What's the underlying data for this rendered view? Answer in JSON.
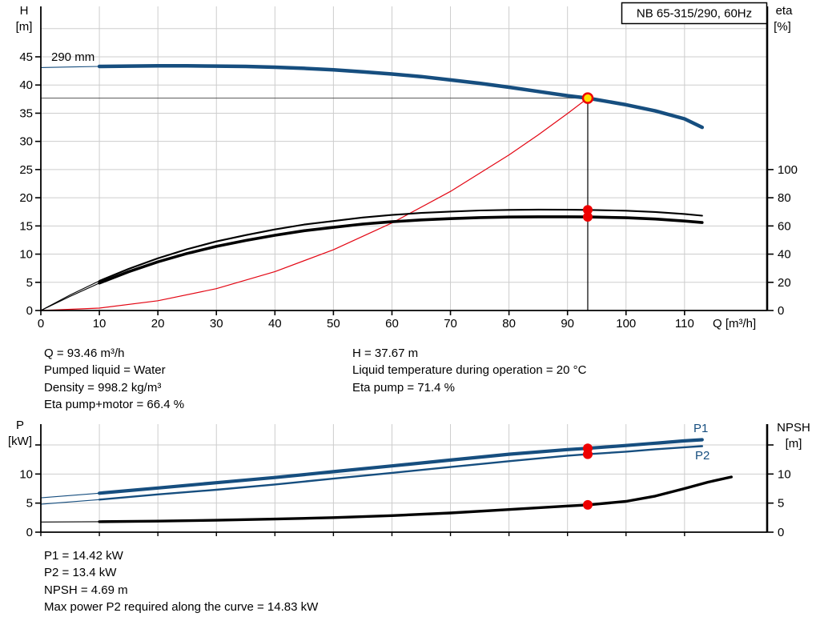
{
  "page": {
    "background": "#ffffff"
  },
  "top_chart": {
    "title_box": "NB 65-315/290, 60Hz",
    "y_left_title_1": "H",
    "y_left_title_2": "[m]",
    "y_right_title_1": "eta",
    "y_right_title_2": "[%]",
    "x_title": "Q [m³/h]",
    "curve_label": "290 mm"
  },
  "bottom_chart": {
    "y_left_title_1": "P",
    "y_left_title_2": "[kW]",
    "y_right_title_1": "NPSH",
    "y_right_title_2": "[m]",
    "p1_label": "P1",
    "p2_label": "P2"
  },
  "annotations": {
    "top_left": [
      "Q = 93.46 m³/h",
      "Pumped liquid = Water",
      "Density = 998.2 kg/m³",
      "Eta pump+motor = 66.4 %"
    ],
    "top_right": [
      "H = 37.67 m",
      "Liquid temperature during operation = 20 °C",
      "Eta pump = 71.4 %"
    ],
    "bottom": [
      "P1 = 14.42 kW",
      "P2 = 13.4 kW",
      "NPSH = 4.69 m",
      "Max power P2 required along the curve = 14.83 kW"
    ]
  },
  "colors": {
    "curve_blue": "#164e7f",
    "curve_black": "#000000",
    "curve_red": "#e30613",
    "marker_red": "#ee0000",
    "marker_yellow": "#ffdf00",
    "grid": "#cdcdcd",
    "axis": "#000000"
  },
  "chart_data": [
    {
      "id": "qh-eta-curve",
      "type": "line",
      "title": "NB 65-315/290, 60Hz",
      "xlabel": "Q [m³/h]",
      "x_range": [
        0,
        124
      ],
      "x_ticks": [
        0,
        10,
        20,
        30,
        40,
        50,
        60,
        70,
        80,
        90,
        100,
        110
      ],
      "y_left_label": "H [m]",
      "y_left_range": [
        0,
        54
      ],
      "y_left_ticks": [
        0,
        5,
        10,
        15,
        20,
        25,
        30,
        35,
        40,
        45
      ],
      "y_left_grid": [
        5,
        10,
        15,
        20,
        25,
        30,
        35,
        40,
        45,
        50
      ],
      "y_right_label": "eta [%]",
      "y_right_range": [
        0,
        216
      ],
      "y_right_ticks": [
        0,
        20,
        40,
        60,
        80,
        100
      ],
      "grid": true,
      "legend_position": "none",
      "series": [
        {
          "name": "system-curve",
          "axis": "H",
          "color": "red",
          "width": 1.2,
          "thin_until": null,
          "points": [
            [
              0,
              0
            ],
            [
              10,
              0.43
            ],
            [
              20,
              1.73
            ],
            [
              30,
              3.88
            ],
            [
              40,
              6.9
            ],
            [
              50,
              10.78
            ],
            [
              60,
              15.53
            ],
            [
              70,
              21.13
            ],
            [
              80,
              27.6
            ],
            [
              85,
              31.16
            ],
            [
              90,
              34.93
            ],
            [
              93.46,
              37.67
            ]
          ]
        },
        {
          "name": "eta-pump-plus-motor",
          "axis": "eta",
          "color": "black",
          "width": 3.6,
          "thin_until": 10,
          "points": [
            [
              0,
              0
            ],
            [
              5,
              10
            ],
            [
              10,
              19.5
            ],
            [
              15,
              27.5
            ],
            [
              20,
              34.5
            ],
            [
              25,
              40.5
            ],
            [
              30,
              45.5
            ],
            [
              35,
              49.7
            ],
            [
              40,
              53.4
            ],
            [
              45,
              56.6
            ],
            [
              50,
              59
            ],
            [
              55,
              61.3
            ],
            [
              60,
              63
            ],
            [
              65,
              64.3
            ],
            [
              70,
              65.2
            ],
            [
              75,
              65.9
            ],
            [
              80,
              66.3
            ],
            [
              85,
              66.5
            ],
            [
              90,
              66.5
            ],
            [
              93.46,
              66.4
            ],
            [
              100,
              65.8
            ],
            [
              105,
              64.9
            ],
            [
              110,
              63.5
            ],
            [
              113,
              62.4
            ]
          ]
        },
        {
          "name": "eta-pump",
          "axis": "eta",
          "color": "black",
          "width": 2.1,
          "thin_until": 10,
          "points": [
            [
              0,
              0
            ],
            [
              5,
              11
            ],
            [
              10,
              21
            ],
            [
              15,
              29.5
            ],
            [
              20,
              37
            ],
            [
              25,
              43.5
            ],
            [
              30,
              49
            ],
            [
              35,
              53.5
            ],
            [
              40,
              57.5
            ],
            [
              45,
              61
            ],
            [
              50,
              63.5
            ],
            [
              55,
              66
            ],
            [
              60,
              67.8
            ],
            [
              65,
              69.2
            ],
            [
              70,
              70.2
            ],
            [
              75,
              71
            ],
            [
              80,
              71.4
            ],
            [
              85,
              71.6
            ],
            [
              90,
              71.5
            ],
            [
              93.46,
              71.4
            ],
            [
              100,
              70.8
            ],
            [
              105,
              69.9
            ],
            [
              110,
              68.5
            ],
            [
              113,
              67.3
            ]
          ]
        },
        {
          "name": "head-290mm",
          "axis": "H",
          "color": "blue",
          "width": 4.5,
          "thin_until": 10,
          "points": [
            [
              0,
              43.1
            ],
            [
              5,
              43.2
            ],
            [
              10,
              43.3
            ],
            [
              15,
              43.35
            ],
            [
              20,
              43.4
            ],
            [
              25,
              43.4
            ],
            [
              30,
              43.35
            ],
            [
              35,
              43.3
            ],
            [
              40,
              43.15
            ],
            [
              45,
              42.95
            ],
            [
              50,
              42.7
            ],
            [
              55,
              42.35
            ],
            [
              60,
              41.95
            ],
            [
              65,
              41.5
            ],
            [
              70,
              40.9
            ],
            [
              75,
              40.3
            ],
            [
              80,
              39.6
            ],
            [
              85,
              38.85
            ],
            [
              90,
              38.1
            ],
            [
              93.46,
              37.67
            ],
            [
              100,
              36.5
            ],
            [
              105,
              35.4
            ],
            [
              110,
              34.0
            ],
            [
              113,
              32.5
            ]
          ]
        }
      ],
      "duty_point": {
        "q": 93.46,
        "h": 37.67,
        "eta_pump": 71.4,
        "eta_pump_motor": 66.4
      }
    },
    {
      "id": "power-npsh-curve",
      "type": "line",
      "xlabel": "",
      "x_range": [
        0,
        124
      ],
      "x_grid": [
        10,
        20,
        30,
        40,
        50,
        60,
        70,
        80,
        90,
        100,
        110
      ],
      "y_left_label": "P [kW]",
      "y_left_range": [
        0,
        18.5
      ],
      "y_tick_values": [
        0,
        5,
        10,
        15
      ],
      "y_tick_labels": [
        "0",
        "5",
        "10",
        ""
      ],
      "y_grid": [
        5,
        10,
        15
      ],
      "y_right_label": "NPSH [m]",
      "grid": true,
      "series": [
        {
          "name": "npsh",
          "axis": "left",
          "color": "black",
          "width": 3.4,
          "thin_until": 10,
          "points": [
            [
              0,
              1.75
            ],
            [
              10,
              1.8
            ],
            [
              20,
              1.9
            ],
            [
              30,
              2.05
            ],
            [
              40,
              2.25
            ],
            [
              50,
              2.5
            ],
            [
              60,
              2.85
            ],
            [
              70,
              3.3
            ],
            [
              80,
              3.9
            ],
            [
              90,
              4.5
            ],
            [
              93.46,
              4.69
            ],
            [
              100,
              5.3
            ],
            [
              105,
              6.2
            ],
            [
              110,
              7.5
            ],
            [
              114,
              8.6
            ],
            [
              118,
              9.5
            ]
          ]
        },
        {
          "name": "p2",
          "axis": "left",
          "color": "blue",
          "width": 2.4,
          "thin_until": 10,
          "points": [
            [
              0,
              4.8
            ],
            [
              10,
              5.6
            ],
            [
              20,
              6.5
            ],
            [
              30,
              7.3
            ],
            [
              40,
              8.2
            ],
            [
              50,
              9.2
            ],
            [
              60,
              10.2
            ],
            [
              70,
              11.2
            ],
            [
              80,
              12.2
            ],
            [
              90,
              13.15
            ],
            [
              93.46,
              13.4
            ],
            [
              100,
              13.85
            ],
            [
              105,
              14.25
            ],
            [
              110,
              14.6
            ],
            [
              113,
              14.8
            ]
          ]
        },
        {
          "name": "p1",
          "axis": "left",
          "color": "blue",
          "width": 4.2,
          "thin_until": 10,
          "points": [
            [
              0,
              5.9
            ],
            [
              10,
              6.7
            ],
            [
              20,
              7.6
            ],
            [
              30,
              8.5
            ],
            [
              40,
              9.4
            ],
            [
              50,
              10.4
            ],
            [
              60,
              11.4
            ],
            [
              70,
              12.4
            ],
            [
              80,
              13.4
            ],
            [
              90,
              14.2
            ],
            [
              93.46,
              14.42
            ],
            [
              100,
              14.9
            ],
            [
              105,
              15.3
            ],
            [
              110,
              15.7
            ],
            [
              113,
              15.9
            ]
          ]
        }
      ],
      "duty_point": {
        "q": 93.46,
        "p1": 14.42,
        "p2": 13.4,
        "npsh": 4.69
      }
    }
  ]
}
